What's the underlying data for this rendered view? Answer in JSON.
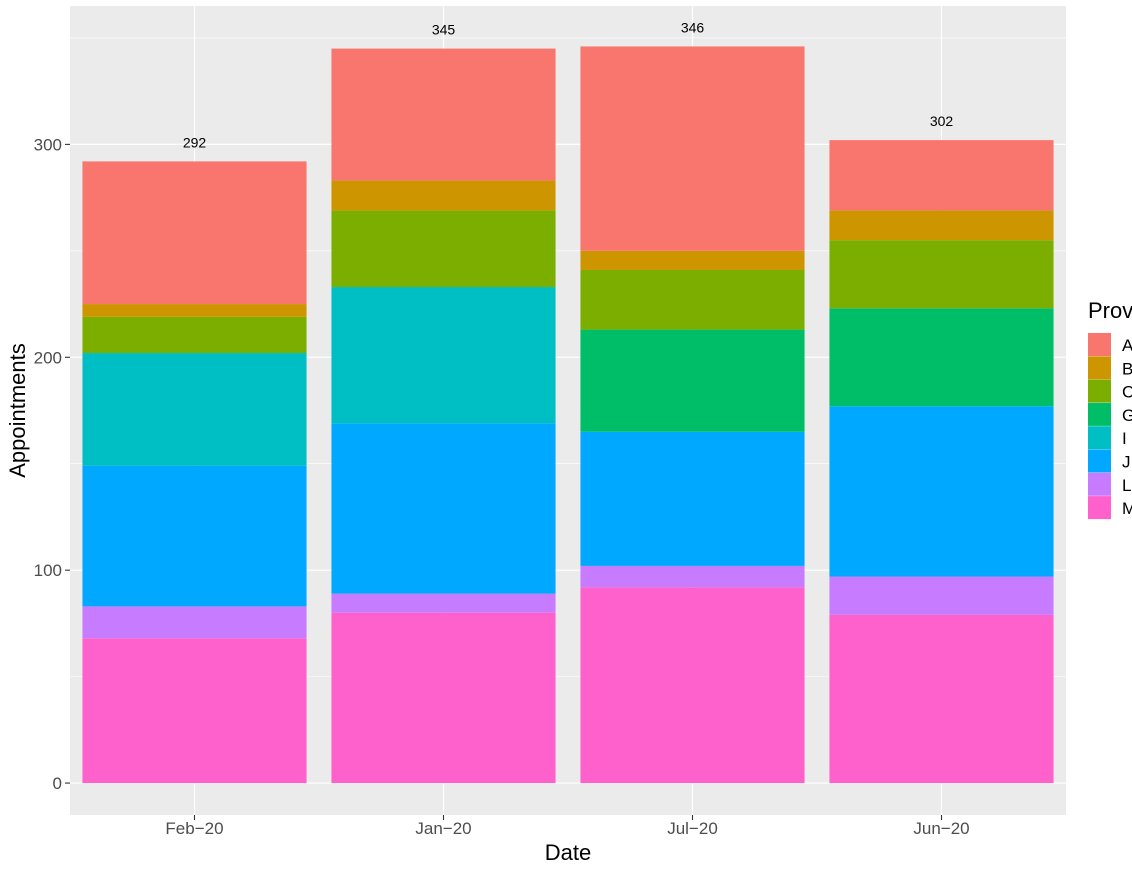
{
  "chart_data": {
    "type": "bar",
    "stacked": true,
    "title": "",
    "xlabel": "Date",
    "ylabel": "Appointments",
    "categories": [
      "Feb−20",
      "Jan−20",
      "Jul−20",
      "Jun−20"
    ],
    "ylim": [
      -15,
      365
    ],
    "yticks": [
      0,
      100,
      200,
      300
    ],
    "totals": [
      "292",
      "345",
      "346",
      "302"
    ],
    "legend_title": "Prov",
    "legend_position": "right",
    "series": [
      {
        "name": "M",
        "color": "#FF61CC",
        "values": [
          68,
          80,
          92,
          79
        ]
      },
      {
        "name": "L",
        "color": "#C77CFF",
        "values": [
          15,
          9,
          10,
          18
        ]
      },
      {
        "name": "J",
        "color": "#00A9FF",
        "values": [
          66,
          80,
          63,
          80
        ]
      },
      {
        "name": "I",
        "color": "#00BFC4",
        "values": [
          53,
          64,
          0,
          0
        ]
      },
      {
        "name": "G",
        "color": "#00BE67",
        "values": [
          0,
          0,
          48,
          46
        ]
      },
      {
        "name": "C",
        "color": "#7CAE00",
        "values": [
          17,
          36,
          28,
          32
        ]
      },
      {
        "name": "B",
        "color": "#CD9600",
        "values": [
          6,
          14,
          9,
          14
        ]
      },
      {
        "name": "A",
        "color": "#F8766D",
        "values": [
          67,
          62,
          96,
          33
        ]
      }
    ],
    "legend_order": [
      "A",
      "B",
      "C",
      "G",
      "I",
      "J",
      "L",
      "M"
    ]
  }
}
